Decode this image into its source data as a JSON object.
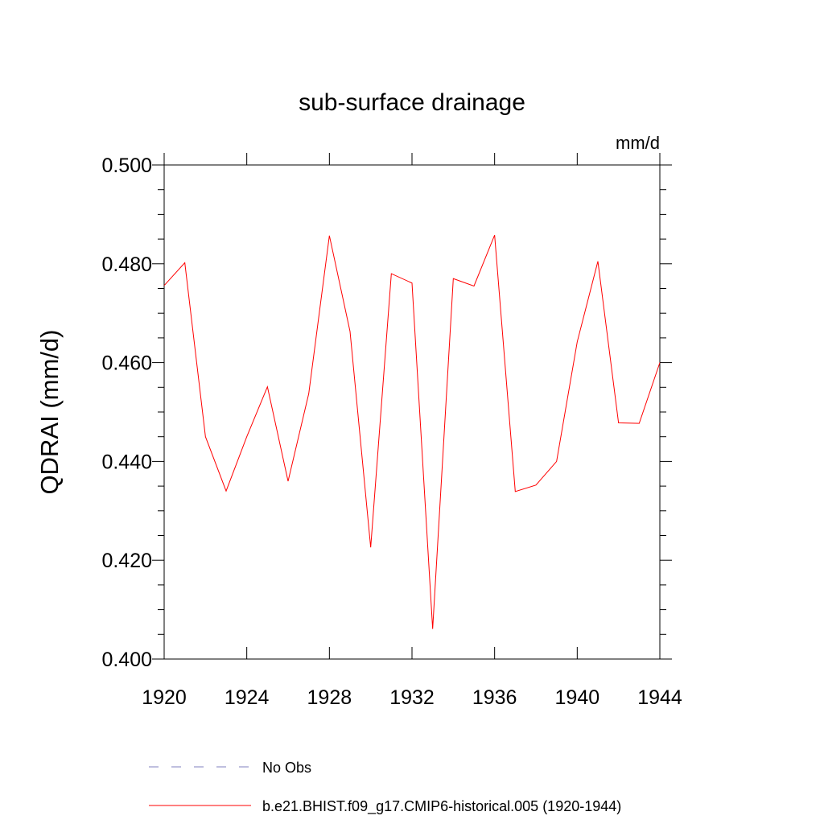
{
  "chart_data": {
    "type": "line",
    "title": "sub-surface drainage",
    "units_label": "mm/d",
    "ylabel": "QDRAI  (mm/d)",
    "xlabel": "",
    "xlim": [
      1920,
      1944
    ],
    "ylim": [
      0.4,
      0.5
    ],
    "x_ticks": [
      "1920",
      "1924",
      "1928",
      "1932",
      "1936",
      "1940",
      "1944"
    ],
    "y_ticks": [
      "0.400",
      "0.420",
      "0.440",
      "0.460",
      "0.480",
      "0.500"
    ],
    "grid": false,
    "legend": [
      {
        "label": "No Obs",
        "style": "dashed",
        "color": "#7f7fbf"
      },
      {
        "label": "b.e21.BHIST.f09_g17.CMIP6-historical.005 (1920-1944)",
        "style": "solid",
        "color": "#ff0000"
      }
    ],
    "series": [
      {
        "name": "b.e21.BHIST.f09_g17.CMIP6-historical.005 (1920-1944)",
        "color": "#ff0000",
        "x": [
          1920,
          1921,
          1922,
          1923,
          1924,
          1925,
          1926,
          1927,
          1928,
          1929,
          1930,
          1931,
          1932,
          1933,
          1934,
          1935,
          1936,
          1937,
          1938,
          1939,
          1940,
          1941,
          1942,
          1943,
          1944
        ],
        "y": [
          0.4756,
          0.4802,
          0.445,
          0.434,
          0.445,
          0.4551,
          0.436,
          0.4537,
          0.4857,
          0.4663,
          0.4226,
          0.478,
          0.4761,
          0.4061,
          0.477,
          0.4755,
          0.4858,
          0.4339,
          0.4352,
          0.44,
          0.4642,
          0.4805,
          0.4478,
          0.4477,
          0.46
        ]
      }
    ]
  }
}
